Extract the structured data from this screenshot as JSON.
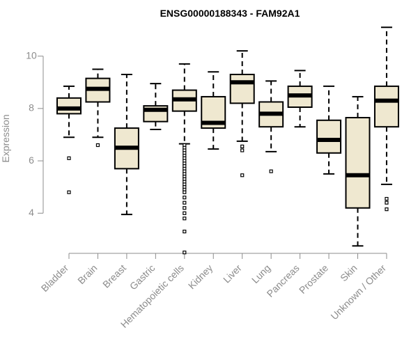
{
  "chart_data": {
    "type": "boxplot",
    "title": "ENSG00000188343 - FAM92A1",
    "xlabel": "",
    "ylabel": "Expression",
    "ylim": [
      2.2,
      11.4
    ],
    "yticks": [
      4,
      6,
      8,
      10
    ],
    "box_fill": "#efe8d0",
    "line_color": "#000000",
    "label_color": "#8c8c8c",
    "categories": [
      "Bladder",
      "Brain",
      "Breast",
      "Gastric",
      "Hematopoietic cells",
      "Kidney",
      "Liver",
      "Lung",
      "Pancreas",
      "Prostate",
      "Skin",
      "Unknown / Other"
    ],
    "boxes": [
      {
        "name": "Bladder",
        "whisker_low": 6.9,
        "q1": 7.8,
        "median": 8.0,
        "q3": 8.4,
        "whisker_high": 8.85,
        "outliers": [
          6.1,
          4.8
        ]
      },
      {
        "name": "Brain",
        "whisker_low": 6.9,
        "q1": 8.25,
        "median": 8.75,
        "q3": 9.15,
        "whisker_high": 9.5,
        "outliers": [
          6.6
        ]
      },
      {
        "name": "Breast",
        "whisker_low": 3.95,
        "q1": 5.7,
        "median": 6.5,
        "q3": 7.25,
        "whisker_high": 9.3,
        "outliers": []
      },
      {
        "name": "Gastric",
        "whisker_low": 7.2,
        "q1": 7.5,
        "median": 7.95,
        "q3": 8.1,
        "whisker_high": 8.95,
        "outliers": []
      },
      {
        "name": "Hematopoietic cells",
        "whisker_low": 6.65,
        "q1": 7.9,
        "median": 8.35,
        "q3": 8.7,
        "whisker_high": 9.7,
        "outliers": [
          6.6,
          6.5,
          6.4,
          6.3,
          6.2,
          6.1,
          6.0,
          5.9,
          5.8,
          5.7,
          5.6,
          5.5,
          5.4,
          5.3,
          5.2,
          5.1,
          5.0,
          4.9,
          4.8,
          4.6,
          4.4,
          4.2,
          4.0,
          3.8,
          3.3,
          2.5
        ]
      },
      {
        "name": "Kidney",
        "whisker_low": 6.45,
        "q1": 7.25,
        "median": 7.45,
        "q3": 8.45,
        "whisker_high": 9.4,
        "outliers": []
      },
      {
        "name": "Liver",
        "whisker_low": 6.75,
        "q1": 8.2,
        "median": 9.0,
        "q3": 9.3,
        "whisker_high": 10.2,
        "outliers": [
          6.55,
          6.4,
          5.45
        ]
      },
      {
        "name": "Lung",
        "whisker_low": 6.35,
        "q1": 7.3,
        "median": 7.8,
        "q3": 8.25,
        "whisker_high": 9.05,
        "outliers": [
          5.6
        ]
      },
      {
        "name": "Pancreas",
        "whisker_low": 7.3,
        "q1": 8.05,
        "median": 8.5,
        "q3": 8.85,
        "whisker_high": 9.45,
        "outliers": []
      },
      {
        "name": "Prostate",
        "whisker_low": 5.5,
        "q1": 6.3,
        "median": 6.8,
        "q3": 7.55,
        "whisker_high": 8.85,
        "outliers": []
      },
      {
        "name": "Skin",
        "whisker_low": 2.75,
        "q1": 4.2,
        "median": 5.45,
        "q3": 7.65,
        "whisker_high": 8.45,
        "outliers": []
      },
      {
        "name": "Unknown / Other",
        "whisker_low": 5.1,
        "q1": 7.3,
        "median": 8.3,
        "q3": 8.85,
        "whisker_high": 11.1,
        "outliers": [
          4.55,
          4.4,
          4.15
        ]
      }
    ]
  }
}
